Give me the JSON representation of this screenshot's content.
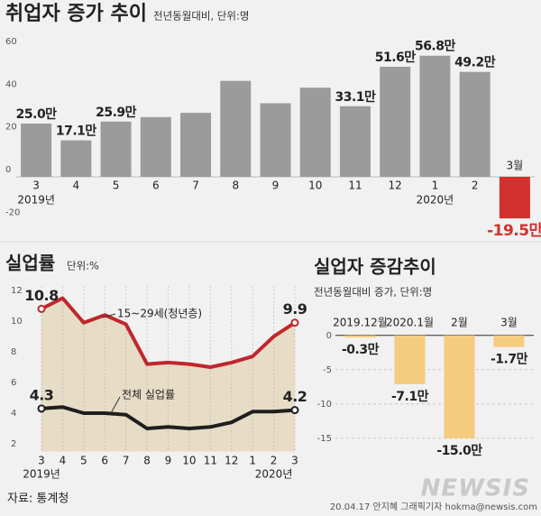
{
  "chart_data": [
    {
      "type": "bar",
      "title": "취업자 증가 추이",
      "subtitle": "전년동월대비, 단위:명",
      "categories": [
        "3",
        "4",
        "5",
        "6",
        "7",
        "8",
        "9",
        "10",
        "11",
        "12",
        "1",
        "2",
        "3월"
      ],
      "year_labels": [
        "2019년",
        null,
        null,
        null,
        null,
        null,
        null,
        null,
        null,
        null,
        "2020년",
        null,
        null
      ],
      "values": [
        25.0,
        17.1,
        25.9,
        28,
        30,
        45,
        34.5,
        41.8,
        33.1,
        51.6,
        56.8,
        49.2,
        -19.5
      ],
      "value_labels": [
        "25.0만",
        "17.1만",
        "25.9만",
        null,
        null,
        null,
        null,
        null,
        "33.1만",
        "51.6만",
        "56.8만",
        "49.2만",
        "-19.5만"
      ],
      "colors": [
        "#9b9b9b",
        "#9b9b9b",
        "#9b9b9b",
        "#9b9b9b",
        "#9b9b9b",
        "#9b9b9b",
        "#9b9b9b",
        "#9b9b9b",
        "#9b9b9b",
        "#9b9b9b",
        "#9b9b9b",
        "#9b9b9b",
        "#d2312d"
      ],
      "ylim": [
        -22,
        66
      ],
      "yticks": [
        -20,
        0,
        20,
        40,
        60
      ],
      "grid": false
    },
    {
      "type": "line",
      "title": "실업률",
      "subtitle": "단위:%",
      "categories": [
        "3",
        "4",
        "5",
        "6",
        "7",
        "8",
        "9",
        "10",
        "11",
        "12",
        "1",
        "2",
        "3"
      ],
      "year_labels": [
        "2019년",
        null,
        null,
        null,
        null,
        null,
        null,
        null,
        null,
        null,
        null,
        "2020년",
        null
      ],
      "series": [
        {
          "name": "15~29세(청년층)",
          "color": "#c0272d",
          "values": [
            10.8,
            11.5,
            9.9,
            10.4,
            9.8,
            7.2,
            7.3,
            7.2,
            7.0,
            7.3,
            7.7,
            9.0,
            9.9
          ],
          "value_labels": [
            "10.8",
            null,
            null,
            null,
            null,
            null,
            null,
            null,
            null,
            null,
            null,
            null,
            "9.9"
          ]
        },
        {
          "name": "전체 실업률",
          "color": "#1e1e1e",
          "values": [
            4.3,
            4.4,
            4.0,
            4.0,
            3.9,
            3.0,
            3.1,
            3.0,
            3.1,
            3.4,
            4.1,
            4.1,
            4.2
          ],
          "value_labels": [
            "4.3",
            null,
            null,
            null,
            null,
            null,
            null,
            null,
            null,
            null,
            null,
            null,
            "4.2"
          ]
        }
      ],
      "area_color": "#e7dcc6",
      "ylim": [
        1.5,
        12.5
      ],
      "yticks": [
        2,
        4,
        6,
        8,
        10,
        12
      ],
      "grid": true
    },
    {
      "type": "bar",
      "title": "실업자 증감추이",
      "subtitle": "전년동월대비 증가, 단위:명",
      "categories": [
        "2019.12월",
        "2020.1월",
        "2월",
        "3월"
      ],
      "values": [
        -0.3,
        -7.1,
        -15.0,
        -1.7
      ],
      "value_labels": [
        "-0.3만",
        "-7.1만",
        "-15.0만",
        "-1.7만"
      ],
      "color": "#f5cb80",
      "ylim": [
        -17,
        0.5
      ],
      "yticks": [
        0,
        -5,
        -10,
        -15
      ],
      "grid": true
    }
  ],
  "source": "자료: 통계청",
  "credit": "20.04.17 안지혜 그래픽기자 hokma@newsis.com",
  "logo": "NEWSIS"
}
